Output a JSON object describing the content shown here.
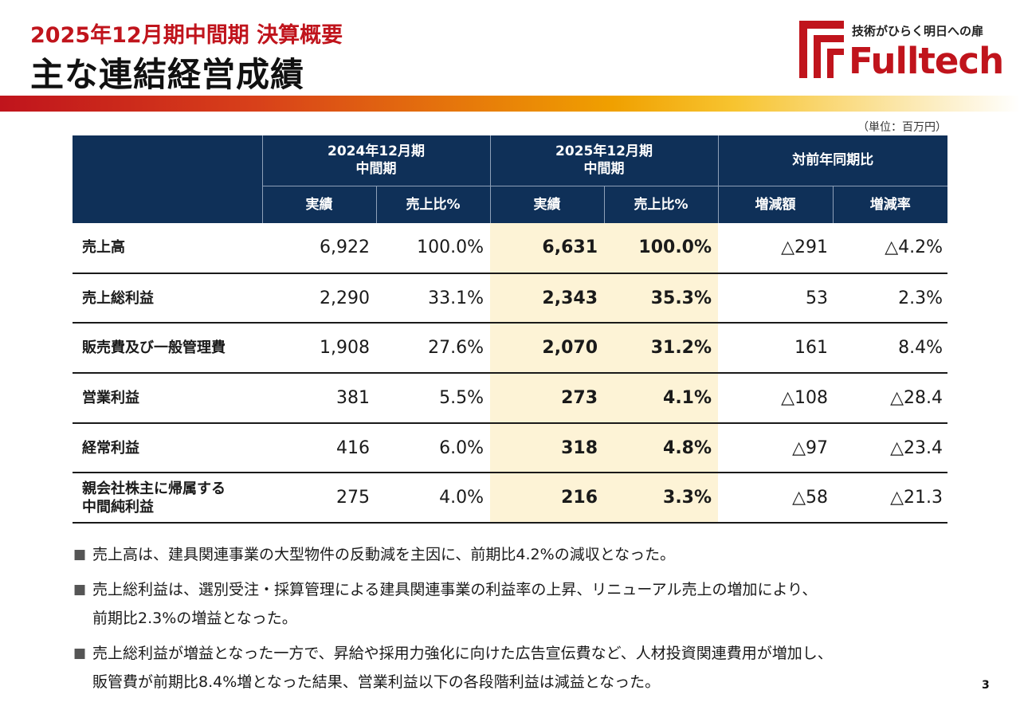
{
  "header": {
    "subtitle": "2025年12月期中間期 決算概要",
    "title": "主な連結経営成績"
  },
  "logo": {
    "tagline": "技術がひらく明日への扉",
    "wordmark": "Fulltech",
    "brand_color": "#c0141c"
  },
  "unit_note": "（単位：百万円）",
  "table": {
    "group_headers": [
      "2024年12月期\n中間期",
      "2025年12月期\n中間期",
      "対前年同期比"
    ],
    "group1_line1": "2024年12月期",
    "group1_line2": "中間期",
    "group2_line1": "2025年12月期",
    "group2_line2": "中間期",
    "group3": "対前年同期比",
    "sub_headers": [
      "実績",
      "売上比%",
      "実績",
      "売上比%",
      "増減額",
      "増減率"
    ],
    "rows": [
      {
        "label": "売上高",
        "prev_actual": "6,922",
        "prev_ratio": "100.0%",
        "cur_actual": "6,631",
        "cur_ratio": "100.0%",
        "diff_amount": "△291",
        "diff_rate": "△4.2%"
      },
      {
        "label": "売上総利益",
        "prev_actual": "2,290",
        "prev_ratio": "33.1%",
        "cur_actual": "2,343",
        "cur_ratio": "35.3%",
        "diff_amount": "53",
        "diff_rate": "2.3%"
      },
      {
        "label": "販売費及び一般管理費",
        "prev_actual": "1,908",
        "prev_ratio": "27.6%",
        "cur_actual": "2,070",
        "cur_ratio": "31.2%",
        "diff_amount": "161",
        "diff_rate": "8.4%"
      },
      {
        "label": "営業利益",
        "prev_actual": "381",
        "prev_ratio": "5.5%",
        "cur_actual": "273",
        "cur_ratio": "4.1%",
        "diff_amount": "△108",
        "diff_rate": "△28.4"
      },
      {
        "label": "経常利益",
        "prev_actual": "416",
        "prev_ratio": "6.0%",
        "cur_actual": "318",
        "cur_ratio": "4.8%",
        "diff_amount": "△97",
        "diff_rate": "△23.4"
      },
      {
        "label_line1": "親会社株主に帰属する",
        "label_line2": "中間純利益",
        "prev_actual": "275",
        "prev_ratio": "4.0%",
        "cur_actual": "216",
        "cur_ratio": "3.3%",
        "diff_amount": "△58",
        "diff_rate": "△21.3"
      }
    ]
  },
  "notes": [
    {
      "bullet": "■",
      "line1": "売上高は、建具関連事業の大型物件の反動減を主因に、前期比4.2%の減収となった。",
      "line2": ""
    },
    {
      "bullet": "■",
      "line1": "売上総利益は、選別受注・採算管理による建具関連事業の利益率の上昇、リニューアル売上の増加により、",
      "line2": "前期比2.3%の増益となった。"
    },
    {
      "bullet": "■",
      "line1": "売上総利益が増益となった一方で、昇給や採用力強化に向けた広告宣伝費など、人材投資関連費用が増加し、",
      "line2": "販管費が前期比8.4%増となった結果、営業利益以下の各段階利益は減益となった。"
    }
  ],
  "page_number": "3",
  "colors": {
    "header_navy": "#0f3058",
    "highlight_column": "#fdf3d6",
    "accent_red": "#c0141c"
  }
}
